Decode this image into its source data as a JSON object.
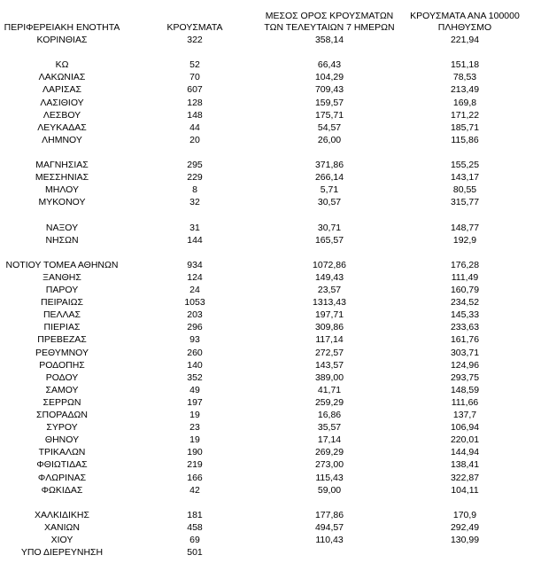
{
  "header": [
    [
      "ΠΕΡΙΦΕΡΕΙΑΚΗ ΕΝΟΤΗΤΑ"
    ],
    [
      "ΚΡΟΥΣΜΑΤΑ"
    ],
    [
      "ΜΕΣΟΣ ΟΡΟΣ ΚΡΟΥΣΜΑΤΩΝ",
      "ΤΩΝ ΤΕΛΕΥΤΑΙΩΝ 7 ΗΜΕΡΩΝ"
    ],
    [
      "ΚΡΟΥΣΜΑΤΑ ΑΝΑ 100000",
      "ΠΛΗΘΥΣΜΟ"
    ]
  ],
  "table": {
    "groups": [
      [
        [
          "ΚΟΡΙΝΘΙΑΣ",
          "322",
          "358,14",
          "221,94"
        ]
      ],
      [
        [
          "ΚΩ",
          "52",
          "66,43",
          "151,18"
        ],
        [
          "ΛΑΚΩΝΙΑΣ",
          "70",
          "104,29",
          "78,53"
        ],
        [
          "ΛΑΡΙΣΑΣ",
          "607",
          "709,43",
          "213,49"
        ],
        [
          "ΛΑΣΙΘΙΟΥ",
          "128",
          "159,57",
          "169,8"
        ],
        [
          "ΛΕΣΒΟΥ",
          "148",
          "175,71",
          "171,22"
        ],
        [
          "ΛΕΥΚΑΔΑΣ",
          "44",
          "54,57",
          "185,71"
        ],
        [
          "ΛΗΜΝΟΥ",
          "20",
          "26,00",
          "115,86"
        ]
      ],
      [
        [
          "ΜΑΓΝΗΣΙΑΣ",
          "295",
          "371,86",
          "155,25"
        ],
        [
          "ΜΕΣΣΗΝΙΑΣ",
          "229",
          "266,14",
          "143,17"
        ],
        [
          "ΜΗΛΟΥ",
          "8",
          "5,71",
          "80,55"
        ],
        [
          "ΜΥΚΟΝΟΥ",
          "32",
          "30,57",
          "315,77"
        ]
      ],
      [
        [
          "ΝΑΞΟΥ",
          "31",
          "30,71",
          "148,77"
        ],
        [
          "ΝΗΣΩΝ",
          "144",
          "165,57",
          "192,9"
        ]
      ],
      [
        [
          "ΝΟΤΙΟΥ ΤΟΜΕΑ ΑΘΗΝΩΝ",
          "934",
          "1072,86",
          "176,28"
        ],
        [
          "ΞΑΝΘΗΣ",
          "124",
          "149,43",
          "111,49"
        ],
        [
          "ΠΑΡΟΥ",
          "24",
          "23,57",
          "160,79"
        ],
        [
          "ΠΕΙΡΑΙΩΣ",
          "1053",
          "1313,43",
          "234,52"
        ],
        [
          "ΠΕΛΛΑΣ",
          "203",
          "197,71",
          "145,33"
        ],
        [
          "ΠΙΕΡΙΑΣ",
          "296",
          "309,86",
          "233,63"
        ],
        [
          "ΠΡΕΒΕΖΑΣ",
          "93",
          "117,14",
          "161,76"
        ],
        [
          "ΡΕΘΥΜΝΟΥ",
          "260",
          "272,57",
          "303,71"
        ],
        [
          "ΡΟΔΟΠΗΣ",
          "140",
          "143,57",
          "124,96"
        ],
        [
          "ΡΟΔΟΥ",
          "352",
          "389,00",
          "293,75"
        ],
        [
          "ΣΑΜΟΥ",
          "49",
          "41,71",
          "148,59"
        ],
        [
          "ΣΕΡΡΩΝ",
          "197",
          "259,29",
          "111,66"
        ],
        [
          "ΣΠΟΡΑΔΩΝ",
          "19",
          "16,86",
          "137,7"
        ],
        [
          "ΣΥΡΟΥ",
          "23",
          "35,57",
          "106,94"
        ],
        [
          "ΘΗΝΟΥ",
          "19",
          "17,14",
          "220,01"
        ],
        [
          "ΤΡΙΚΑΛΩΝ",
          "190",
          "269,29",
          "144,94"
        ],
        [
          "ΦΘΙΩΤΙΔΑΣ",
          "219",
          "273,00",
          "138,41"
        ],
        [
          "ΦΛΩΡΙΝΑΣ",
          "166",
          "115,43",
          "322,87"
        ],
        [
          "ΦΩΚΙΔΑΣ",
          "42",
          "59,00",
          "104,11"
        ]
      ],
      [
        [
          "ΧΑΛΚΙΔΙΚΗΣ",
          "181",
          "177,86",
          "170,9"
        ],
        [
          "ΧΑΝΙΩΝ",
          "458",
          "494,57",
          "292,49"
        ],
        [
          "ΧΙΟΥ",
          "69",
          "110,43",
          "130,99"
        ],
        [
          "ΥΠΟ ΔΙΕΡΕΥΝΗΣΗ",
          "501"
        ]
      ]
    ]
  }
}
